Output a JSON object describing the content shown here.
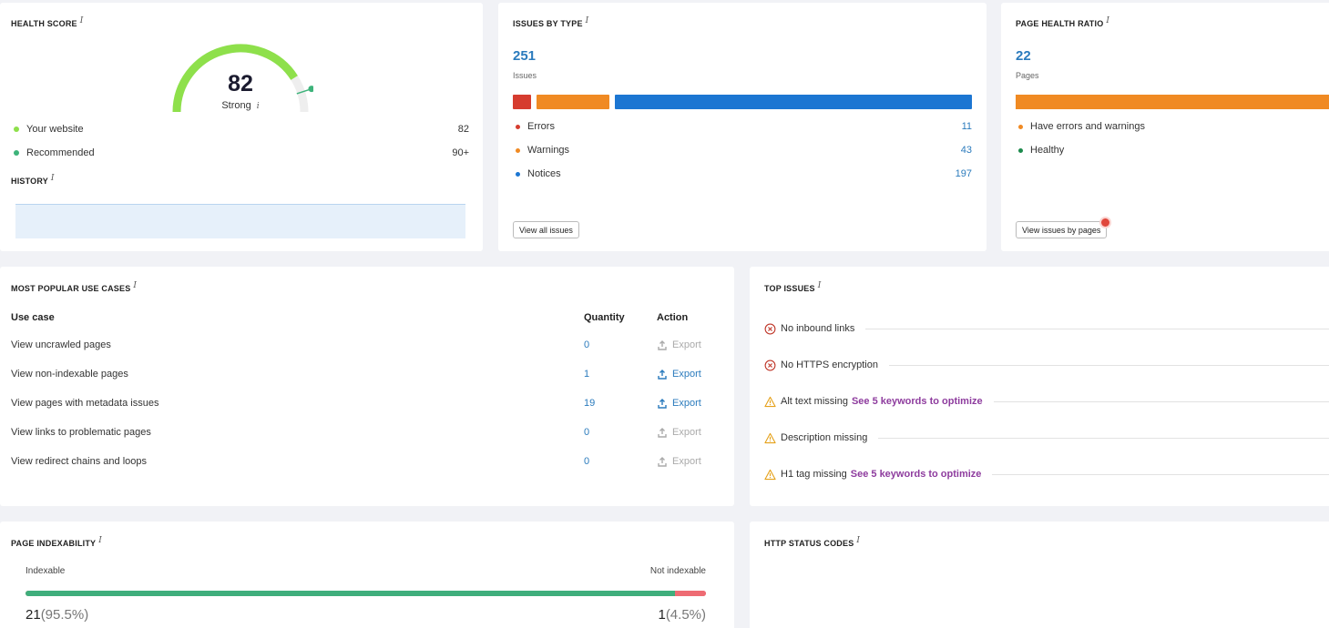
{
  "health_score": {
    "title": "HEALTH SCORE",
    "info": "i",
    "score": "82",
    "rating": "Strong",
    "gauge_fraction": 0.82,
    "legend": [
      {
        "label": "Your website",
        "value": "82",
        "color": "#8ee04b"
      },
      {
        "label": "Recommended",
        "value": "90+",
        "color": "#3db37a"
      }
    ],
    "history_title": "HISTORY"
  },
  "issues_by_type": {
    "title": "ISSUES BY TYPE",
    "info": "i",
    "total": "251",
    "total_label": "Issues",
    "rows": [
      {
        "label": "Errors",
        "value": "11",
        "color": "#d63c2f"
      },
      {
        "label": "Warnings",
        "value": "43",
        "color": "#f08a23"
      },
      {
        "label": "Notices",
        "value": "197",
        "color": "#1c76d2"
      }
    ],
    "button": "View all issues"
  },
  "page_health_ratio": {
    "title": "PAGE HEALTH RATIO",
    "info": "i",
    "total": "22",
    "total_label": "Pages",
    "rows": [
      {
        "label": "Have errors and warnings",
        "color": "#f08a23"
      },
      {
        "label": "Healthy",
        "color": "#1c8a4c"
      }
    ],
    "button": "View issues by pages"
  },
  "use_cases": {
    "title": "MOST POPULAR USE CASES",
    "info": "i",
    "headers": {
      "use_case": "Use case",
      "quantity": "Quantity",
      "action": "Action"
    },
    "rows": [
      {
        "label": "View uncrawled pages",
        "qty": "0",
        "action": "Export",
        "enabled": false
      },
      {
        "label": "View non-indexable pages",
        "qty": "1",
        "action": "Export",
        "enabled": true
      },
      {
        "label": "View pages with metadata issues",
        "qty": "19",
        "action": "Export",
        "enabled": true
      },
      {
        "label": "View links to problematic pages",
        "qty": "0",
        "action": "Export",
        "enabled": false
      },
      {
        "label": "View redirect chains and loops",
        "qty": "0",
        "action": "Export",
        "enabled": false
      }
    ]
  },
  "top_issues": {
    "title": "TOP ISSUES",
    "info": "i",
    "rows": [
      {
        "label": "No inbound links",
        "icon": "error-circle-icon",
        "link": ""
      },
      {
        "label": "No HTTPS encryption",
        "icon": "error-circle-icon",
        "link": ""
      },
      {
        "label": "Alt text missing",
        "icon": "warning-triangle-icon",
        "link": "See 5 keywords to optimize"
      },
      {
        "label": "Description missing",
        "icon": "warning-triangle-icon",
        "link": ""
      },
      {
        "label": "H1 tag missing",
        "icon": "warning-triangle-icon",
        "link": "See 5 keywords to optimize"
      }
    ]
  },
  "indexability": {
    "title": "PAGE INDEXABILITY",
    "info": "i",
    "left_label": "Indexable",
    "right_label": "Not indexable",
    "left_count": "21",
    "left_pct": "(95.5%)",
    "right_count": "1",
    "right_pct": "(4.5%)",
    "fraction_indexable": 0.955,
    "colors": {
      "indexable": "#3fae7c",
      "not_indexable": "#ee6b73"
    }
  },
  "http_status": {
    "title": "HTTP STATUS CODES",
    "info": "i"
  }
}
